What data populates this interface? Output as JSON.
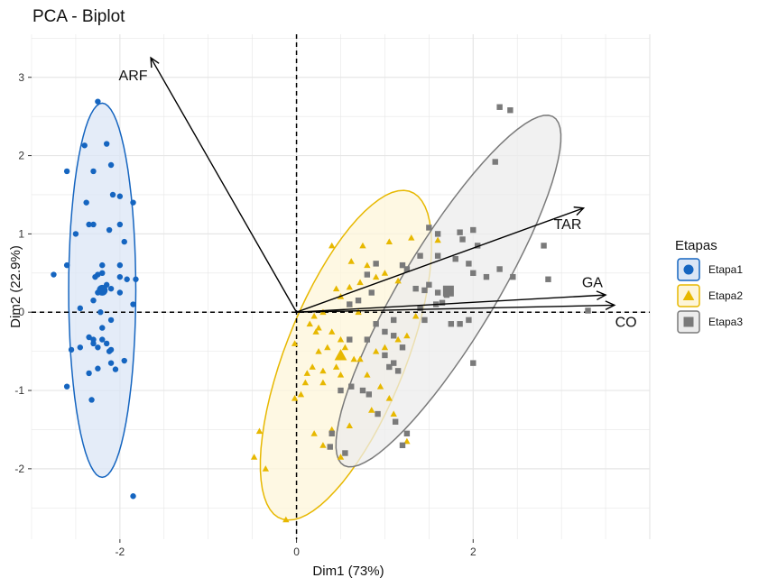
{
  "chart_data": {
    "type": "scatter",
    "title": "PCA - Biplot",
    "xlabel": "Dim1 (73%)",
    "ylabel": "Dim2 (22.9%)",
    "xlim": [
      -3.0,
      4.0
    ],
    "ylim": [
      -2.9,
      3.55
    ],
    "x_ticks": [
      -2,
      0,
      2
    ],
    "y_ticks": [
      -2,
      -1,
      0,
      1,
      2,
      3
    ],
    "grid": true,
    "legend": {
      "title": "Etapas",
      "position": "right"
    },
    "series": [
      {
        "name": "Etapa1",
        "color": "#1565c0",
        "fill": "#dbe6f5",
        "marker": "circle",
        "centroid": [
          -2.2,
          0.28
        ],
        "ellipse": {
          "center": [
            -2.2,
            0.28
          ],
          "points": [
            [
              -2.2,
              2.67
            ],
            [
              -2.2,
              -2.08
            ],
            [
              -1.82,
              0.28
            ],
            [
              -2.58,
              0.28
            ]
          ]
        },
        "points": [
          [
            -2.25,
            2.69
          ],
          [
            -2.15,
            2.15
          ],
          [
            -2.4,
            2.13
          ],
          [
            -2.3,
            1.8
          ],
          [
            -2.6,
            1.8
          ],
          [
            -2.1,
            1.88
          ],
          [
            -2.08,
            1.5
          ],
          [
            -2.0,
            1.48
          ],
          [
            -1.85,
            1.4
          ],
          [
            -2.38,
            1.4
          ],
          [
            -2.3,
            1.12
          ],
          [
            -2.35,
            1.12
          ],
          [
            -2.0,
            1.12
          ],
          [
            -1.95,
            0.9
          ],
          [
            -2.12,
            1.05
          ],
          [
            -2.5,
            1.0
          ],
          [
            -2.0,
            0.6
          ],
          [
            -2.2,
            0.6
          ],
          [
            -2.6,
            0.6
          ],
          [
            -2.2,
            0.5
          ],
          [
            -2.25,
            0.48
          ],
          [
            -2.28,
            0.45
          ],
          [
            -2.0,
            0.45
          ],
          [
            -1.92,
            0.42
          ],
          [
            -1.82,
            0.42
          ],
          [
            -2.15,
            0.35
          ],
          [
            -2.1,
            0.3
          ],
          [
            -2.3,
            0.15
          ],
          [
            -2.25,
            0.25
          ],
          [
            -2.0,
            0.25
          ],
          [
            -2.45,
            0.05
          ],
          [
            -2.75,
            0.48
          ],
          [
            -2.22,
            0.0
          ],
          [
            -2.1,
            -0.1
          ],
          [
            -2.2,
            -0.2
          ],
          [
            -2.35,
            -0.32
          ],
          [
            -2.3,
            -0.35
          ],
          [
            -2.2,
            -0.35
          ],
          [
            -2.15,
            -0.4
          ],
          [
            -2.1,
            -0.48
          ],
          [
            -2.25,
            -0.45
          ],
          [
            -2.45,
            -0.45
          ],
          [
            -2.55,
            -0.48
          ],
          [
            -1.95,
            -0.62
          ],
          [
            -2.1,
            -0.65
          ],
          [
            -2.05,
            -0.73
          ],
          [
            -2.25,
            -0.72
          ],
          [
            -2.35,
            -0.78
          ],
          [
            -2.6,
            -0.95
          ],
          [
            -2.32,
            -1.12
          ],
          [
            -1.85,
            0.1
          ],
          [
            -1.85,
            -2.35
          ],
          [
            -2.3,
            -0.4
          ],
          [
            -2.12,
            -0.5
          ]
        ]
      },
      {
        "name": "Etapa2",
        "color": "#e7b800",
        "fill": "#fdf5d9",
        "marker": "triangle",
        "centroid": [
          0.5,
          -0.55
        ],
        "ellipse": {
          "center": [
            0.56,
            -0.55
          ],
          "points": [
            [
              1.15,
              1.55
            ],
            [
              -0.03,
              -2.65
            ],
            [
              1.33,
              -0.39
            ],
            [
              -0.21,
              -0.71
            ]
          ]
        },
        "points": [
          [
            0.4,
            0.85
          ],
          [
            0.75,
            0.85
          ],
          [
            1.05,
            0.9
          ],
          [
            1.3,
            0.95
          ],
          [
            1.6,
            0.92
          ],
          [
            0.62,
            0.65
          ],
          [
            0.8,
            0.6
          ],
          [
            0.9,
            0.45
          ],
          [
            1.0,
            0.5
          ],
          [
            1.15,
            0.4
          ],
          [
            0.72,
            0.38
          ],
          [
            0.6,
            0.32
          ],
          [
            0.45,
            0.3
          ],
          [
            0.5,
            0.2
          ],
          [
            0.6,
            0.1
          ],
          [
            0.7,
            0.0
          ],
          [
            0.3,
            0.0
          ],
          [
            0.2,
            -0.05
          ],
          [
            0.15,
            -0.15
          ],
          [
            0.22,
            -0.25
          ],
          [
            0.4,
            -0.25
          ],
          [
            0.5,
            -0.35
          ],
          [
            0.55,
            -0.45
          ],
          [
            0.35,
            -0.45
          ],
          [
            0.25,
            -0.5
          ],
          [
            0.65,
            -0.6
          ],
          [
            0.72,
            -0.6
          ],
          [
            0.45,
            -0.7
          ],
          [
            0.3,
            -0.75
          ],
          [
            0.18,
            -0.7
          ],
          [
            0.12,
            -0.78
          ],
          [
            0.1,
            -0.9
          ],
          [
            0.3,
            -0.9
          ],
          [
            0.5,
            -0.8
          ],
          [
            0.8,
            -0.8
          ],
          [
            0.9,
            -0.5
          ],
          [
            1.0,
            -0.45
          ],
          [
            1.15,
            -0.35
          ],
          [
            1.25,
            -0.3
          ],
          [
            1.35,
            -0.05
          ],
          [
            0.95,
            -0.95
          ],
          [
            1.05,
            -1.1
          ],
          [
            0.85,
            -1.25
          ],
          [
            1.1,
            -1.3
          ],
          [
            0.6,
            -1.45
          ],
          [
            0.4,
            -1.5
          ],
          [
            0.2,
            -1.55
          ],
          [
            0.3,
            -1.7
          ],
          [
            0.05,
            -1.05
          ],
          [
            -0.02,
            -1.1
          ],
          [
            -0.02,
            -0.4
          ],
          [
            -0.42,
            -1.52
          ],
          [
            -0.48,
            -1.85
          ],
          [
            -0.35,
            -2.0
          ],
          [
            -0.12,
            -2.65
          ],
          [
            1.25,
            -1.65
          ],
          [
            0.5,
            -1.85
          ],
          [
            0.25,
            -0.2
          ]
        ]
      },
      {
        "name": "Etapa3",
        "color": "#7a7a7a",
        "fill": "#ececec",
        "marker": "square",
        "centroid": [
          1.72,
          0.27
        ],
        "ellipse": {
          "center": [
            1.72,
            0.27
          ],
          "points": [
            [
              2.9,
              2.5
            ],
            [
              0.55,
              -1.97
            ],
            [
              2.2,
              0.0
            ],
            [
              1.25,
              0.53
            ]
          ]
        },
        "points": [
          [
            2.3,
            2.62
          ],
          [
            2.42,
            2.58
          ],
          [
            2.25,
            1.92
          ],
          [
            1.5,
            1.08
          ],
          [
            1.6,
            1.0
          ],
          [
            1.85,
            1.02
          ],
          [
            2.0,
            1.05
          ],
          [
            1.88,
            0.93
          ],
          [
            2.05,
            0.85
          ],
          [
            2.8,
            0.85
          ],
          [
            1.4,
            0.72
          ],
          [
            1.6,
            0.72
          ],
          [
            1.95,
            0.62
          ],
          [
            1.8,
            0.68
          ],
          [
            2.0,
            0.5
          ],
          [
            2.3,
            0.55
          ],
          [
            2.15,
            0.45
          ],
          [
            2.45,
            0.45
          ],
          [
            2.85,
            0.42
          ],
          [
            1.2,
            0.6
          ],
          [
            1.25,
            0.55
          ],
          [
            0.9,
            0.62
          ],
          [
            0.8,
            0.48
          ],
          [
            1.5,
            0.35
          ],
          [
            1.35,
            0.3
          ],
          [
            1.45,
            0.28
          ],
          [
            1.6,
            0.25
          ],
          [
            1.7,
            0.22
          ],
          [
            1.58,
            0.1
          ],
          [
            0.85,
            0.25
          ],
          [
            0.7,
            0.15
          ],
          [
            0.6,
            0.1
          ],
          [
            1.4,
            0.05
          ],
          [
            1.45,
            -0.1
          ],
          [
            1.75,
            -0.15
          ],
          [
            1.85,
            -0.15
          ],
          [
            1.95,
            -0.1
          ],
          [
            2.0,
            -0.65
          ],
          [
            3.3,
            0.02
          ],
          [
            1.1,
            -0.1
          ],
          [
            0.9,
            -0.15
          ],
          [
            1.0,
            -0.25
          ],
          [
            1.1,
            -0.3
          ],
          [
            1.2,
            -0.45
          ],
          [
            0.8,
            -0.35
          ],
          [
            0.6,
            -0.35
          ],
          [
            1.0,
            -0.55
          ],
          [
            1.1,
            -0.65
          ],
          [
            1.05,
            -0.7
          ],
          [
            1.15,
            -0.75
          ],
          [
            0.75,
            -1.0
          ],
          [
            0.82,
            -1.05
          ],
          [
            0.5,
            -1.0
          ],
          [
            0.62,
            -0.95
          ],
          [
            0.92,
            -1.3
          ],
          [
            1.12,
            -1.4
          ],
          [
            1.25,
            -1.55
          ],
          [
            0.4,
            -1.55
          ],
          [
            0.38,
            -1.72
          ],
          [
            0.55,
            -1.8
          ],
          [
            1.2,
            -1.7
          ],
          [
            1.65,
            0.12
          ]
        ]
      }
    ],
    "variables": [
      {
        "name": "ARF",
        "x": -1.65,
        "y": 3.25,
        "label_pos": [
          -1.85,
          3.03
        ]
      },
      {
        "name": "TAR",
        "x": 3.25,
        "y": 1.33,
        "label_pos": [
          3.07,
          1.13
        ]
      },
      {
        "name": "GA",
        "x": 3.5,
        "y": 0.22,
        "label_pos": [
          3.35,
          0.39
        ]
      },
      {
        "name": "CO",
        "x": 3.6,
        "y": 0.09,
        "label_pos": [
          3.73,
          -0.12
        ]
      }
    ]
  }
}
